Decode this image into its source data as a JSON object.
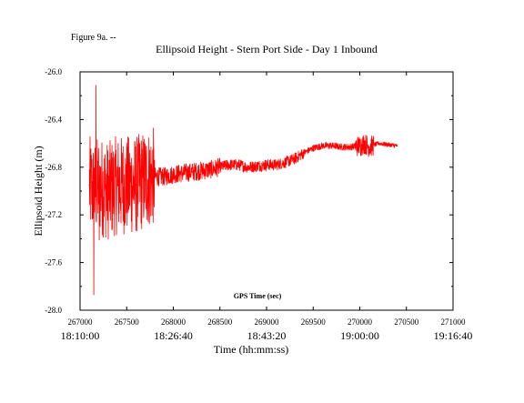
{
  "figure_label": "Figure 9a. --",
  "chart_data": {
    "type": "line",
    "title": "Ellipsoid Height - Stern Port Side - Day 1 Inbound",
    "ylabel": "Ellipsoid Height (m)",
    "xlabel_inner": "GPS Time (sec)",
    "xlabel_outer": "Time (hh:mm:ss)",
    "xlim": [
      267000,
      271000
    ],
    "ylim": [
      -28.0,
      -26.0
    ],
    "x_ticks": [
      "267000",
      "267500",
      "268000",
      "268500",
      "269000",
      "269500",
      "270000",
      "270500",
      "271000"
    ],
    "y_ticks": [
      "-26.0",
      "-26.4",
      "-26.8",
      "-27.2",
      "-27.6",
      "-28.0"
    ],
    "time_ticks": [
      {
        "x": 267000,
        "label": "18:10:00"
      },
      {
        "x": 268000,
        "label": "18:26:40"
      },
      {
        "x": 269000,
        "label": "18:43:20"
      },
      {
        "x": 270000,
        "label": "19:00:00"
      },
      {
        "x": 271000,
        "label": "19:16:40"
      }
    ],
    "grid": false,
    "series": [
      {
        "color": "#ff0000",
        "x": [
          267100,
          267150,
          267200,
          267300,
          267400,
          267500,
          267600,
          267700,
          267800,
          267900,
          268000,
          268100,
          268200,
          268300,
          268400,
          268500,
          268600,
          268700,
          268800,
          268900,
          269000,
          269100,
          269200,
          269300,
          269400,
          269500,
          269600,
          269700,
          269800,
          269900,
          270000,
          270050,
          270100,
          270200,
          270300,
          270400
        ],
        "y": [
          -26.95,
          -27.0,
          -26.95,
          -27.0,
          -26.95,
          -26.95,
          -26.95,
          -26.9,
          -26.88,
          -26.88,
          -26.86,
          -26.85,
          -26.84,
          -26.83,
          -26.82,
          -26.8,
          -26.78,
          -26.78,
          -26.8,
          -26.79,
          -26.78,
          -26.78,
          -26.76,
          -26.73,
          -26.68,
          -26.64,
          -26.62,
          -26.62,
          -26.63,
          -26.63,
          -26.62,
          -26.6,
          -26.63,
          -26.6,
          -26.61,
          -26.62
        ]
      }
    ]
  }
}
